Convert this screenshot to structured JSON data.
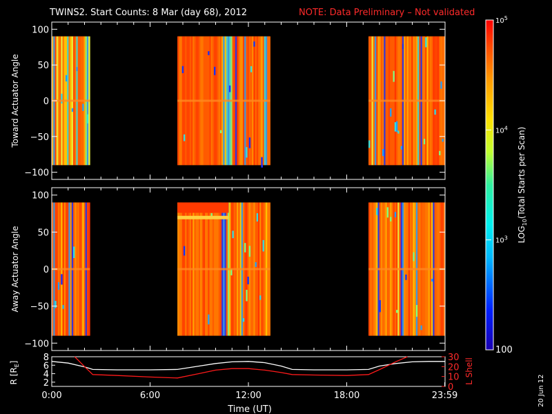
{
  "header": {
    "title": "TWINS2. Start Counts:  8 Mar (day  68), 2012",
    "note": "NOTE: Data Preliminary – Not validated"
  },
  "chart_data": [
    {
      "type": "heatmap",
      "name": "toward",
      "ylabel": "Toward Actuator Angle",
      "ylim": [
        -110,
        110
      ],
      "yticks": [
        "100",
        "50",
        "0",
        "−50",
        "−100"
      ],
      "ytick_values": [
        100,
        50,
        0,
        -50,
        -100
      ],
      "xlim": [
        0,
        24
      ],
      "data_y_range": [
        -90,
        90
      ],
      "coverage_hours": [
        [
          0,
          2.33
        ],
        [
          7.67,
          13.33
        ],
        [
          19.33,
          24
        ]
      ]
    },
    {
      "type": "heatmap",
      "name": "away",
      "ylabel": "Away Actuator Angle",
      "ylim": [
        -110,
        110
      ],
      "yticks": [
        "100",
        "50",
        "0",
        "−50",
        "−100"
      ],
      "ytick_values": [
        100,
        50,
        0,
        -50,
        -100
      ],
      "xlim": [
        0,
        24
      ],
      "data_y_range": [
        -90,
        90
      ],
      "coverage_hours": [
        [
          0,
          2.33
        ],
        [
          7.67,
          13.33
        ],
        [
          19.33,
          24
        ]
      ]
    },
    {
      "type": "line",
      "name": "orbit",
      "ylabel_left": "R [R",
      "ylabel_left_sub": "E",
      "ylabel_left_close": "]",
      "ylabel_right": "L Shell",
      "left_ticks": [
        "8",
        "6",
        "4",
        "2"
      ],
      "left_tick_values": [
        8,
        6,
        4,
        2
      ],
      "right_ticks": [
        "30",
        "20",
        "10",
        "0"
      ],
      "right_tick_values": [
        30,
        20,
        10,
        0
      ],
      "ylim_left": [
        1,
        8
      ],
      "ylim_right": [
        0,
        30
      ],
      "xlabel": "Time (UT)",
      "xticks": [
        "0:00",
        "6:00",
        "12:00",
        "18:00",
        "23:59"
      ],
      "xtick_values": [
        0,
        6,
        12,
        18,
        23.98
      ],
      "series": [
        {
          "name": "R",
          "color": "#ffffff",
          "x": [
            0,
            1,
            2,
            2.5,
            4,
            6,
            7.67,
            9,
            10,
            11,
            12,
            13,
            14,
            14.67,
            16,
            18,
            19.33,
            20,
            21,
            22,
            23,
            24
          ],
          "y": [
            6.9,
            6.5,
            5.6,
            5.0,
            4.9,
            4.9,
            5.0,
            5.8,
            6.4,
            6.8,
            6.9,
            6.6,
            5.8,
            5.0,
            4.9,
            4.9,
            5.0,
            5.8,
            6.4,
            6.8,
            6.9,
            6.9
          ]
        },
        {
          "name": "L Shell",
          "color": "#ff1a1a",
          "x": [
            1.4,
            2,
            2.5,
            4,
            6,
            7.67,
            9,
            10,
            11,
            12,
            13,
            14,
            14.67,
            16,
            18,
            19.33,
            20,
            21,
            21.7
          ],
          "y": [
            30,
            20,
            12,
            11,
            9.5,
            8.5,
            13,
            16.5,
            18,
            18,
            16.5,
            14,
            12,
            11.5,
            11,
            12,
            17,
            25,
            30
          ]
        }
      ]
    }
  ],
  "colorbar": {
    "label_prefix": "LOG",
    "label_sub": "10",
    "label_rest": "(Total Starts per Scan)",
    "tick_bases": [
      "10",
      "10",
      "10"
    ],
    "tick_exps": [
      "5",
      "4",
      "3"
    ],
    "tick_values": [
      100000,
      10000,
      1000
    ],
    "bottom_label": "100",
    "range": [
      100,
      100000
    ],
    "scale": "log"
  },
  "side_date": "20 Jun 12"
}
